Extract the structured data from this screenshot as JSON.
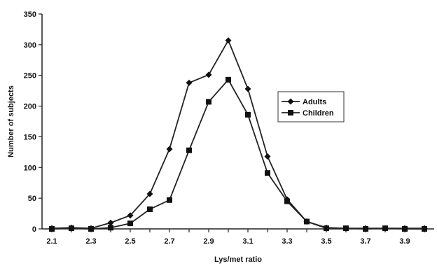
{
  "chart_data": {
    "type": "line",
    "title": "",
    "xlabel": "Lys/met ratio",
    "ylabel": "Number of subjects",
    "x": [
      2.1,
      2.2,
      2.3,
      2.4,
      2.5,
      2.6,
      2.7,
      2.8,
      2.9,
      3.0,
      3.1,
      3.2,
      3.3,
      3.4,
      3.5,
      3.6,
      3.7,
      3.8,
      3.9,
      4.0
    ],
    "x_tick_labels": [
      "2.1",
      "2.3",
      "2.5",
      "2.7",
      "2.9",
      "3.1",
      "3.3",
      "3.5",
      "3.7",
      "3.9"
    ],
    "x_tick_values": [
      2.1,
      2.3,
      2.5,
      2.7,
      2.9,
      3.1,
      3.3,
      3.5,
      3.7,
      3.9
    ],
    "xlim": [
      2.05,
      4.05
    ],
    "ylim": [
      0,
      350
    ],
    "y_tick_labels": [
      "0",
      "50",
      "100",
      "150",
      "200",
      "250",
      "300",
      "350"
    ],
    "y_tick_values": [
      0,
      50,
      100,
      150,
      200,
      250,
      300,
      350
    ],
    "grid": false,
    "legend_position": "right",
    "series": [
      {
        "name": "Adults",
        "marker": "diamond",
        "values": [
          1,
          2,
          1,
          10,
          22,
          57,
          130,
          238,
          251,
          307,
          228,
          118,
          48,
          12,
          2,
          1,
          1,
          1,
          1,
          1
        ]
      },
      {
        "name": "Children",
        "marker": "square",
        "values": [
          0,
          1,
          0,
          2,
          9,
          32,
          47,
          128,
          207,
          243,
          186,
          91,
          45,
          12,
          1,
          1,
          0,
          1,
          0,
          0
        ]
      }
    ],
    "colors": {
      "line": "#222222",
      "marker": "#111111",
      "axis": "#222222"
    }
  }
}
